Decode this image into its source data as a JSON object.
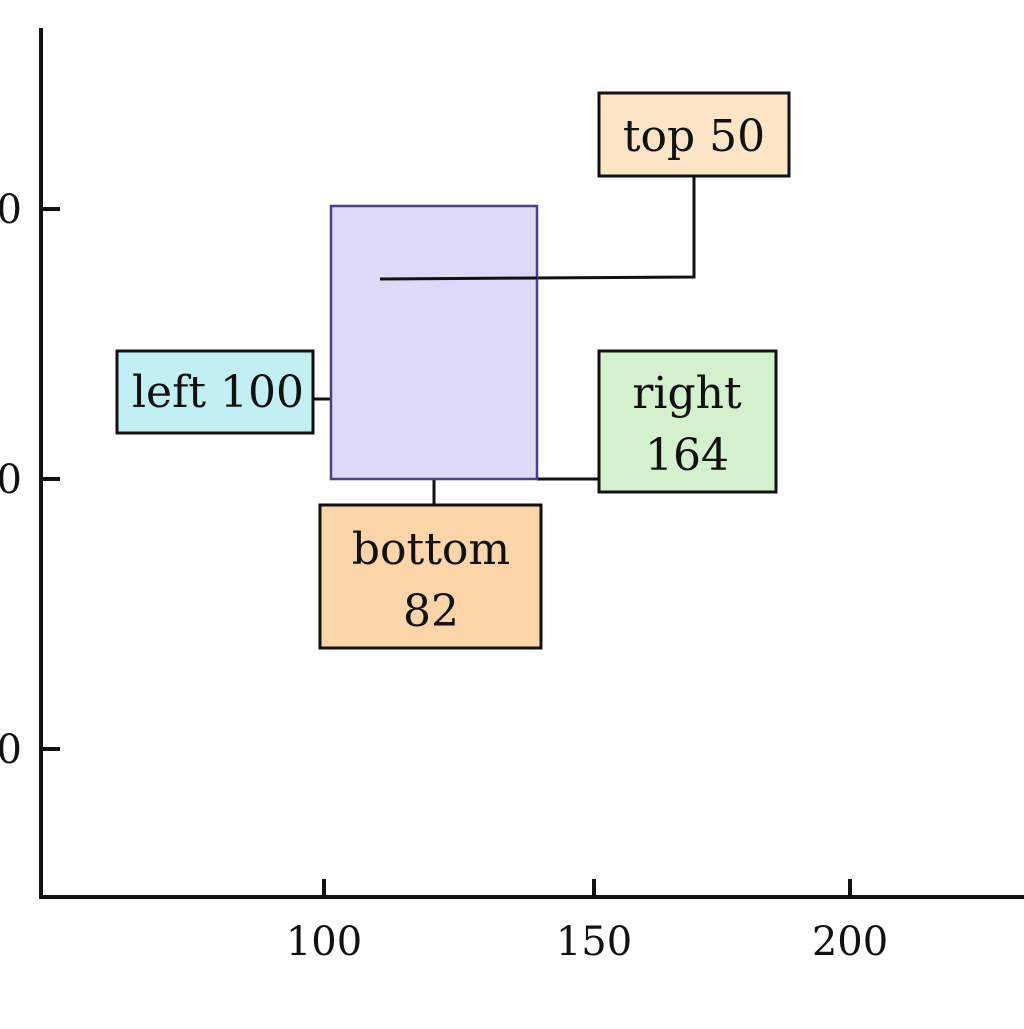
{
  "figure": {
    "x_ticks": [
      "100",
      "150",
      "200"
    ],
    "y_ticks": [
      "0",
      "0",
      "0"
    ]
  },
  "region": {
    "color": "#ded9f6",
    "border_color": "#4a3f8a"
  },
  "callouts": {
    "top": {
      "lines": [
        "top 50"
      ],
      "fill": "#fde5c6"
    },
    "left": {
      "lines": [
        "left 100"
      ],
      "fill": "#c2eff2"
    },
    "right": {
      "lines": [
        "right",
        "164"
      ],
      "fill": "#d3f1cc"
    },
    "bottom": {
      "lines": [
        "bottom",
        "82"
      ],
      "fill": "#fdd5a8"
    }
  }
}
